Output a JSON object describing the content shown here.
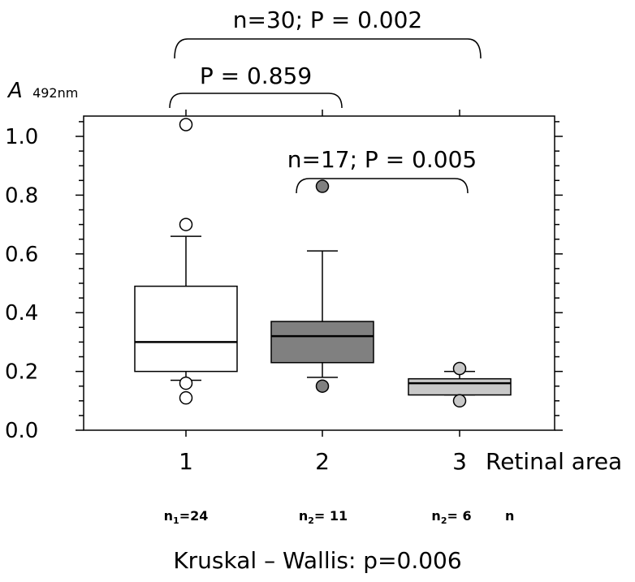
{
  "chart_data": {
    "type": "box",
    "ylabel_main": "A",
    "ylabel_sub": "492nm",
    "xlabel": "Retinal area",
    "n_label": "n",
    "footer": "Kruskal – Wallis: p=0.006",
    "ylim": [
      0.0,
      1.1
    ],
    "yticks": [
      "0.0",
      "0.2",
      "0.4",
      "0.6",
      "0.8",
      "1.0"
    ],
    "categories": [
      "1",
      "2",
      "3"
    ],
    "n_text": [
      {
        "prefix": "n",
        "sub": "1",
        "suffix": "=24"
      },
      {
        "prefix": "n",
        "sub": "2",
        "suffix": "= 11"
      },
      {
        "prefix": "n",
        "sub": "2",
        "suffix": "= 6"
      }
    ],
    "boxes": [
      {
        "category": "1",
        "whisker_low": 0.17,
        "q1": 0.2,
        "median": 0.3,
        "q3": 0.49,
        "whisker_high": 0.66,
        "outliers": [
          1.04,
          0.7,
          0.16,
          0.11
        ],
        "fill": "#ffffff"
      },
      {
        "category": "2",
        "whisker_low": 0.18,
        "q1": 0.23,
        "median": 0.32,
        "q3": 0.37,
        "whisker_high": 0.61,
        "outliers": [
          0.83,
          0.15
        ],
        "fill": "#808080"
      },
      {
        "category": "3",
        "whisker_low": 0.12,
        "q1": 0.12,
        "median": 0.16,
        "q3": 0.175,
        "whisker_high": 0.2,
        "outliers": [
          0.21,
          0.1
        ],
        "fill": "#c8c8c8"
      }
    ],
    "comparisons": [
      {
        "label": "n=30; P = 0.002",
        "from": "1",
        "to": "3"
      },
      {
        "label": "P = 0.859",
        "from": "1",
        "to": "2"
      },
      {
        "label": "n=17; P = 0.005",
        "from": "2",
        "to": "3"
      }
    ]
  }
}
